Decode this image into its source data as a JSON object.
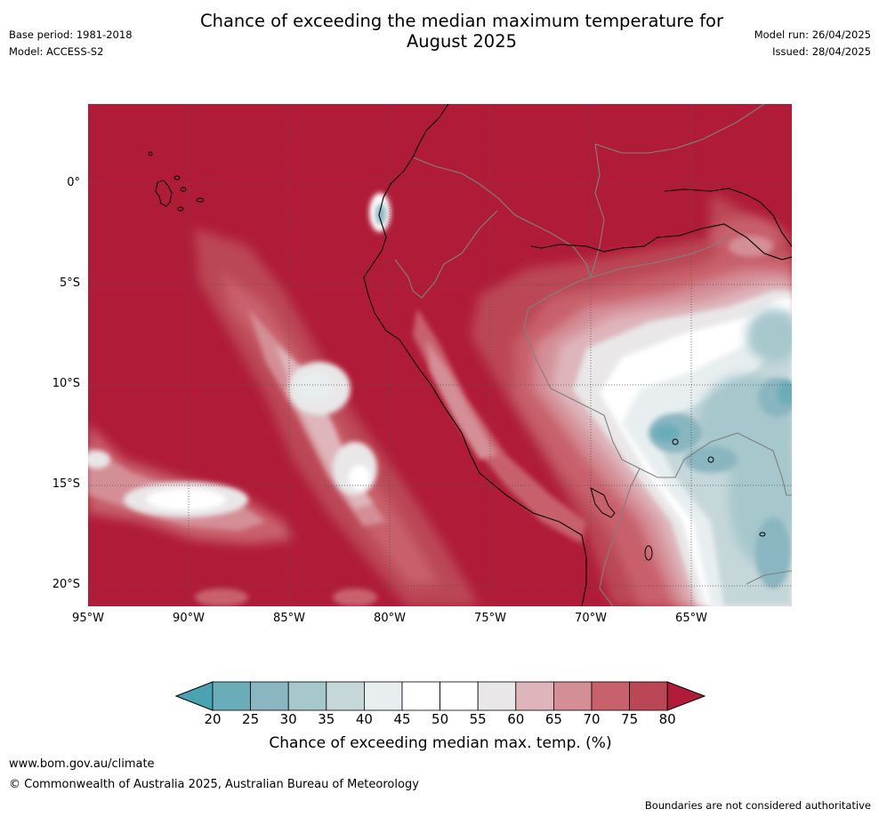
{
  "header": {
    "title_line1": "Chance of exceeding the median maximum temperature for",
    "title_line2": "August 2025",
    "base_period": "Base period: 1981-2018",
    "model": "Model: ACCESS-S2",
    "model_run": "Model run: 26/04/2025",
    "issued": "Issued: 28/04/2025"
  },
  "map": {
    "region": "western South America and eastern Pacific",
    "lat_labels": [
      "0°",
      "5°S",
      "10°S",
      "15°S",
      "20°S"
    ],
    "lon_labels": [
      "95°W",
      "90°W",
      "85°W",
      "80°W",
      "75°W",
      "70°W",
      "65°W"
    ],
    "extent": {
      "lon_min": -95,
      "lon_max": -60,
      "lat_min": -21,
      "lat_max": 4
    },
    "gridlines": true,
    "dominant_category": "80+",
    "features": [
      "coastline",
      "country-boundaries",
      "galapagos-islands",
      "lake-titicaca"
    ]
  },
  "colorbar": {
    "ticks": [
      "20",
      "25",
      "30",
      "35",
      "40",
      "45",
      "50",
      "55",
      "60",
      "65",
      "70",
      "75",
      "80"
    ],
    "colors": [
      "#6aadb9",
      "#8ab6c1",
      "#a6c7cc",
      "#c6d7da",
      "#e8eef0",
      "#ffffff",
      "#ffffff",
      "#e9e7e8",
      "#deb5bb",
      "#d48e96",
      "#c8616c",
      "#bb4655"
    ],
    "under_color": "#4ba3b1",
    "over_color": "#b01c38",
    "label": "Chance of exceeding median max. temp. (%)"
  },
  "footer": {
    "website": "www.bom.gov.au/climate",
    "copyright": "© Commonwealth of Australia 2025, Australian Bureau of Meteorology",
    "disclaimer": "Boundaries are not considered authoritative"
  }
}
